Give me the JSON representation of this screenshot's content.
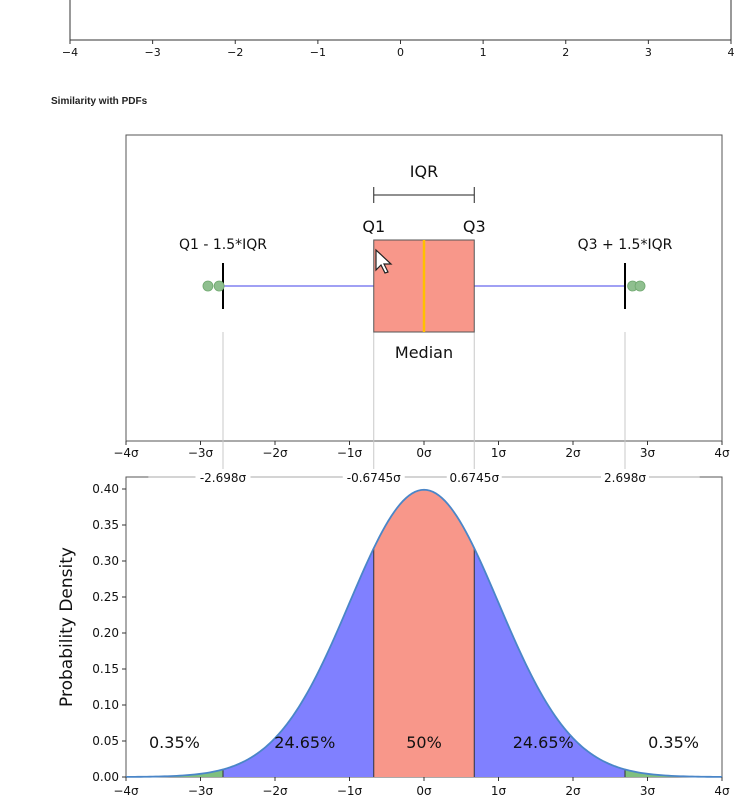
{
  "section_title": "Similarity with PDFs",
  "chart_data": [
    {
      "type": "axis",
      "name": "top-partial-axis",
      "xlim": [
        -4,
        4
      ],
      "xticks": [
        -4,
        -3,
        -2,
        -1,
        0,
        1,
        2,
        3,
        4
      ],
      "xtick_labels": [
        "−4",
        "−3",
        "−2",
        "−1",
        "0",
        "1",
        "2",
        "3",
        "4"
      ]
    },
    {
      "type": "boxplot",
      "name": "boxplot",
      "xlim": [
        -4,
        4
      ],
      "xtick_labels": [
        "−4σ",
        "−3σ",
        "−2σ",
        "−1σ",
        "0σ",
        "1σ",
        "2σ",
        "3σ",
        "4σ"
      ],
      "q1": -0.6745,
      "median": 0,
      "q3": 0.6745,
      "whisker_low": -2.698,
      "whisker_high": 2.698,
      "outliers": [
        -2.9,
        -2.75,
        2.8,
        2.9
      ],
      "labels": {
        "iqr": "IQR",
        "q1": "Q1",
        "q3": "Q3",
        "low_whisker": "Q1 - 1.5*IQR",
        "high_whisker": "Q3 + 1.5*IQR",
        "median": "Median"
      },
      "colors": {
        "box": "#f8978a",
        "median": "#ffc000",
        "whisker": "#8080f0",
        "outlier": "#8fbf8f"
      }
    },
    {
      "type": "area",
      "name": "normal-pdf",
      "xlim": [
        -4,
        4
      ],
      "ylim": [
        0,
        0.4
      ],
      "ylabel": "Probability Density",
      "yticks": [
        0,
        0.05,
        0.1,
        0.15,
        0.2,
        0.25,
        0.3,
        0.35,
        0.4
      ],
      "ytick_labels": [
        "0.00",
        "0.05",
        "0.10",
        "0.15",
        "0.20",
        "0.25",
        "0.30",
        "0.35",
        "0.40"
      ],
      "xtick_labels": [
        "−4σ",
        "−3σ",
        "−2σ",
        "−1σ",
        "0σ",
        "1σ",
        "2σ",
        "3σ",
        "4σ"
      ],
      "boundaries": [
        -2.698,
        -0.6745,
        0.6745,
        2.698
      ],
      "boundary_labels": [
        "-2.698σ",
        "-0.6745σ",
        "0.6745σ",
        "2.698σ"
      ],
      "regions": [
        {
          "from": -4,
          "to": -2.698,
          "label": "0.35%",
          "color": "#7fbf7f"
        },
        {
          "from": -2.698,
          "to": -0.6745,
          "label": "24.65%",
          "color": "#8080ff"
        },
        {
          "from": -0.6745,
          "to": 0.6745,
          "label": "50%",
          "color": "#f8978a"
        },
        {
          "from": 0.6745,
          "to": 2.698,
          "label": "24.65%",
          "color": "#8080ff"
        },
        {
          "from": 2.698,
          "to": 4,
          "label": "0.35%",
          "color": "#7fbf7f"
        }
      ],
      "curve_color": "#4a86c8"
    }
  ]
}
